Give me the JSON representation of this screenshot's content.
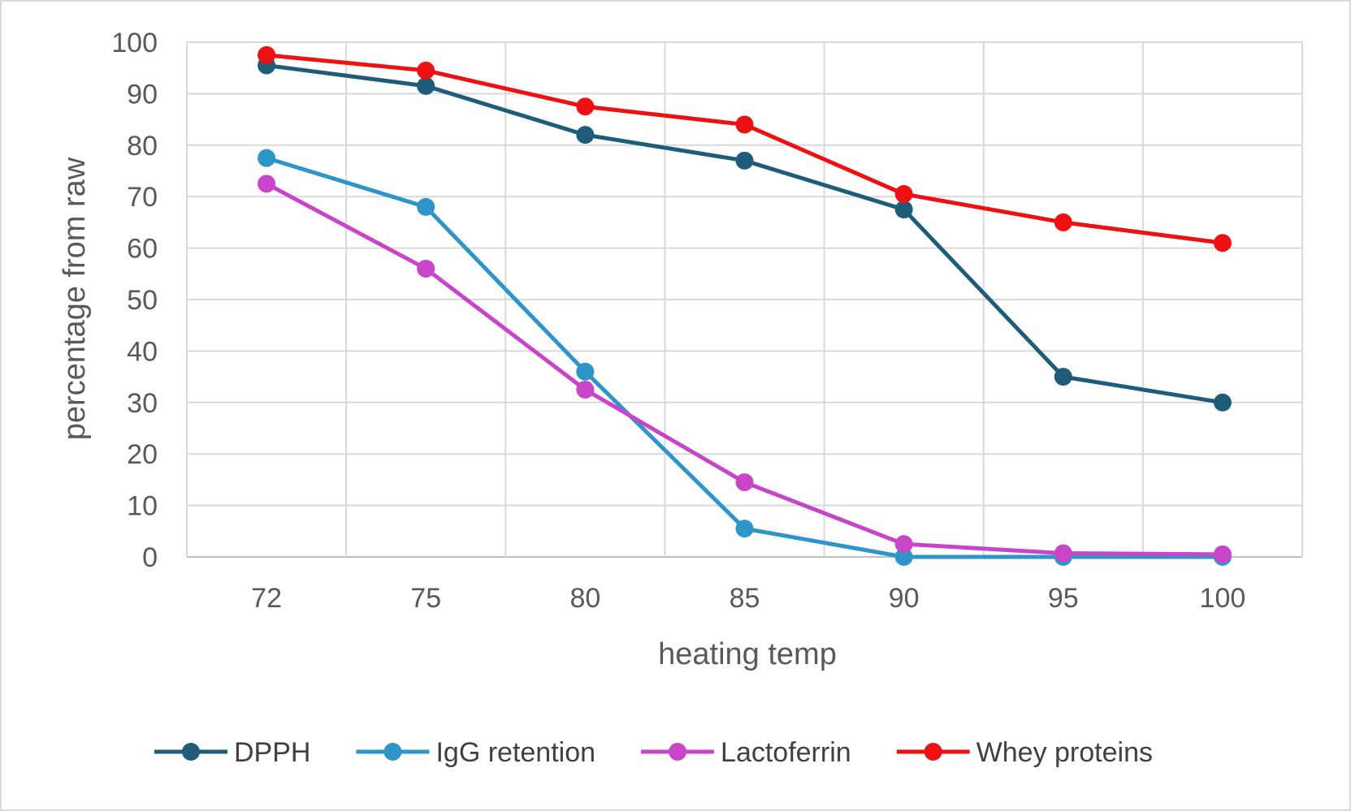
{
  "chart_data": {
    "type": "line",
    "title": "",
    "xlabel": "heating temp",
    "ylabel": "percentage from raw",
    "categories": [
      "72",
      "75",
      "80",
      "85",
      "90",
      "95",
      "100"
    ],
    "ylim": [
      0,
      100
    ],
    "yticks": [
      0,
      10,
      20,
      30,
      40,
      50,
      60,
      70,
      80,
      90,
      100
    ],
    "grid": true,
    "legend_position": "bottom",
    "series": [
      {
        "name": "DPPH",
        "color": "#1f5c7a",
        "values": [
          95.5,
          91.5,
          82,
          77,
          67.5,
          35,
          30
        ]
      },
      {
        "name": "IgG retention",
        "color": "#2e95c8",
        "values": [
          77.5,
          68,
          36,
          5.5,
          0,
          0,
          0
        ]
      },
      {
        "name": "Lactoferrin",
        "color": "#c844c8",
        "values": [
          72.5,
          56,
          32.5,
          14.5,
          2.5,
          0.7,
          0.5
        ]
      },
      {
        "name": "Whey proteins",
        "color": "#ee1111",
        "values": [
          97.5,
          94.5,
          87.5,
          84,
          70.5,
          65,
          61
        ]
      }
    ]
  }
}
